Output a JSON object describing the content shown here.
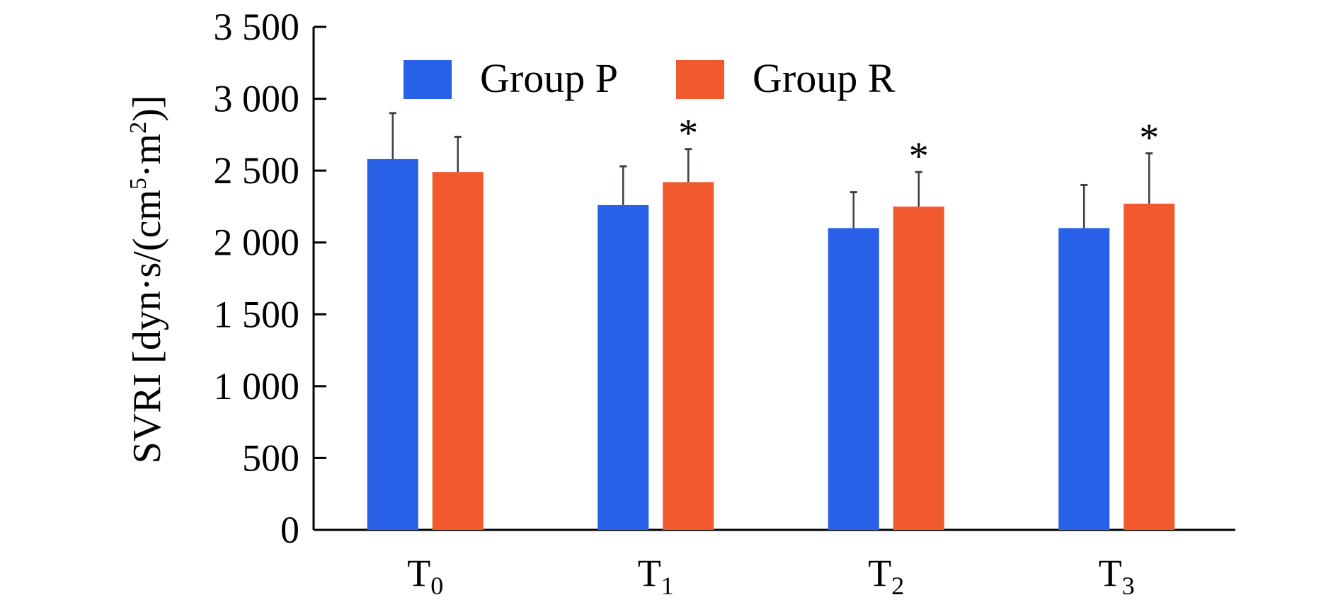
{
  "chart_data": {
    "type": "bar",
    "categories": [
      "T",
      "T",
      "T",
      "T"
    ],
    "category_subscripts": [
      "0",
      "1",
      "2",
      "3"
    ],
    "series": [
      {
        "name": "Group P",
        "color": "#2860E8",
        "values": [
          2580,
          2260,
          2100,
          2100
        ],
        "errors": [
          320,
          270,
          250,
          300
        ]
      },
      {
        "name": "Group R",
        "color": "#F05A2E",
        "values": [
          2490,
          2420,
          2250,
          2270
        ],
        "errors": [
          245,
          230,
          240,
          350
        ]
      }
    ],
    "significance": [
      "",
      "*",
      "*",
      "*"
    ],
    "ylabel": "SVRI [dyn·s/(cm⁵·m²)]",
    "ylabel_parts": {
      "main": "SVRI [dyn·s/(cm",
      "sup1": "5",
      "mid": "·m",
      "sup2": "2",
      "end": ")]"
    },
    "ylim": [
      0,
      3500
    ],
    "yticks": [
      0,
      500,
      1000,
      1500,
      2000,
      2500,
      3000,
      3500
    ],
    "ytick_labels": [
      "0",
      "500",
      "1 000",
      "1 500",
      "2 000",
      "2 500",
      "3 000",
      "3 500"
    ],
    "legend_position": "top",
    "grid": false
  }
}
